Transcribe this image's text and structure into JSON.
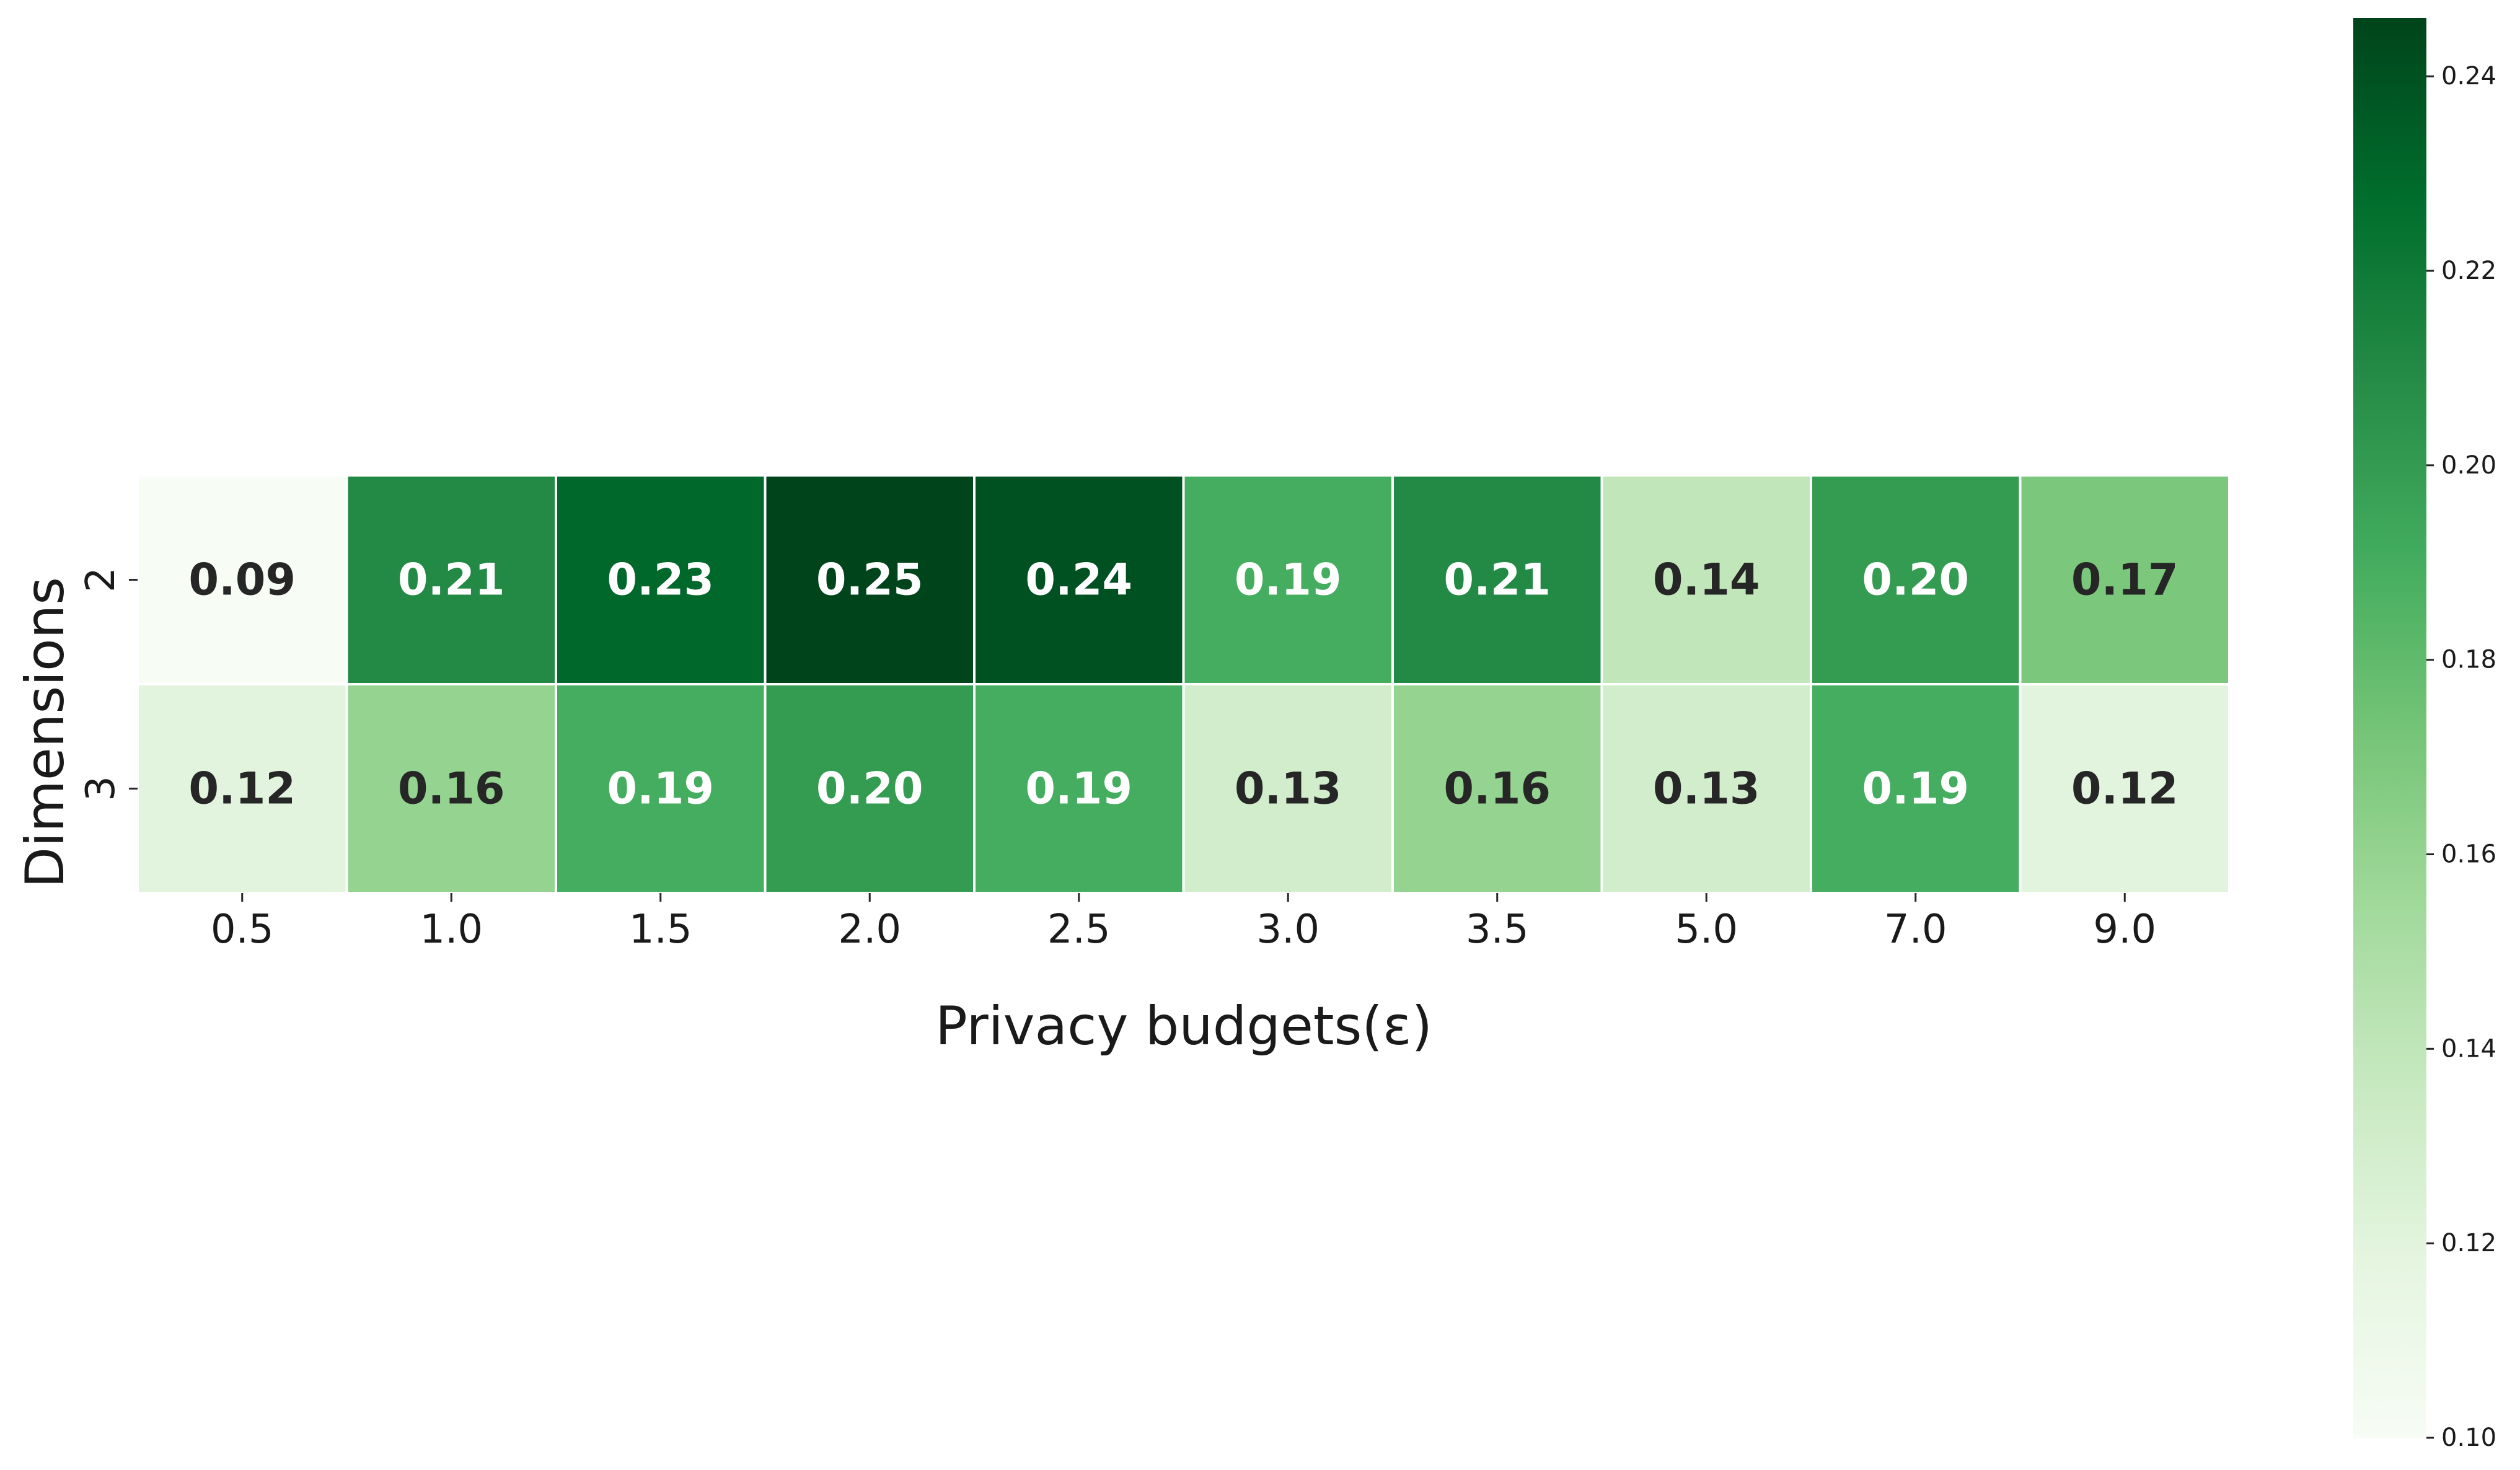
{
  "chart_data": {
    "type": "heatmap",
    "title": "",
    "xlabel": "Privacy budgets(ε)",
    "ylabel": "Dimensions",
    "x_categories": [
      "0.5",
      "1.0",
      "1.5",
      "2.0",
      "2.5",
      "3.0",
      "3.5",
      "5.0",
      "7.0",
      "9.0"
    ],
    "y_categories": [
      "2",
      "3"
    ],
    "values": [
      [
        0.09,
        0.21,
        0.23,
        0.25,
        0.24,
        0.19,
        0.21,
        0.14,
        0.2,
        0.17
      ],
      [
        0.12,
        0.16,
        0.19,
        0.2,
        0.19,
        0.13,
        0.16,
        0.13,
        0.19,
        0.12
      ]
    ],
    "value_format": "0.00",
    "colormap": "Greens",
    "colorbar": {
      "range": [
        0.1,
        0.246
      ],
      "ticks": [
        "0.10",
        "0.12",
        "0.14",
        "0.16",
        "0.18",
        "0.20",
        "0.22",
        "0.24"
      ],
      "position": "right"
    },
    "annotation_colors": {
      "dark": "#262626",
      "light": "#ffffff"
    },
    "grid": false
  }
}
